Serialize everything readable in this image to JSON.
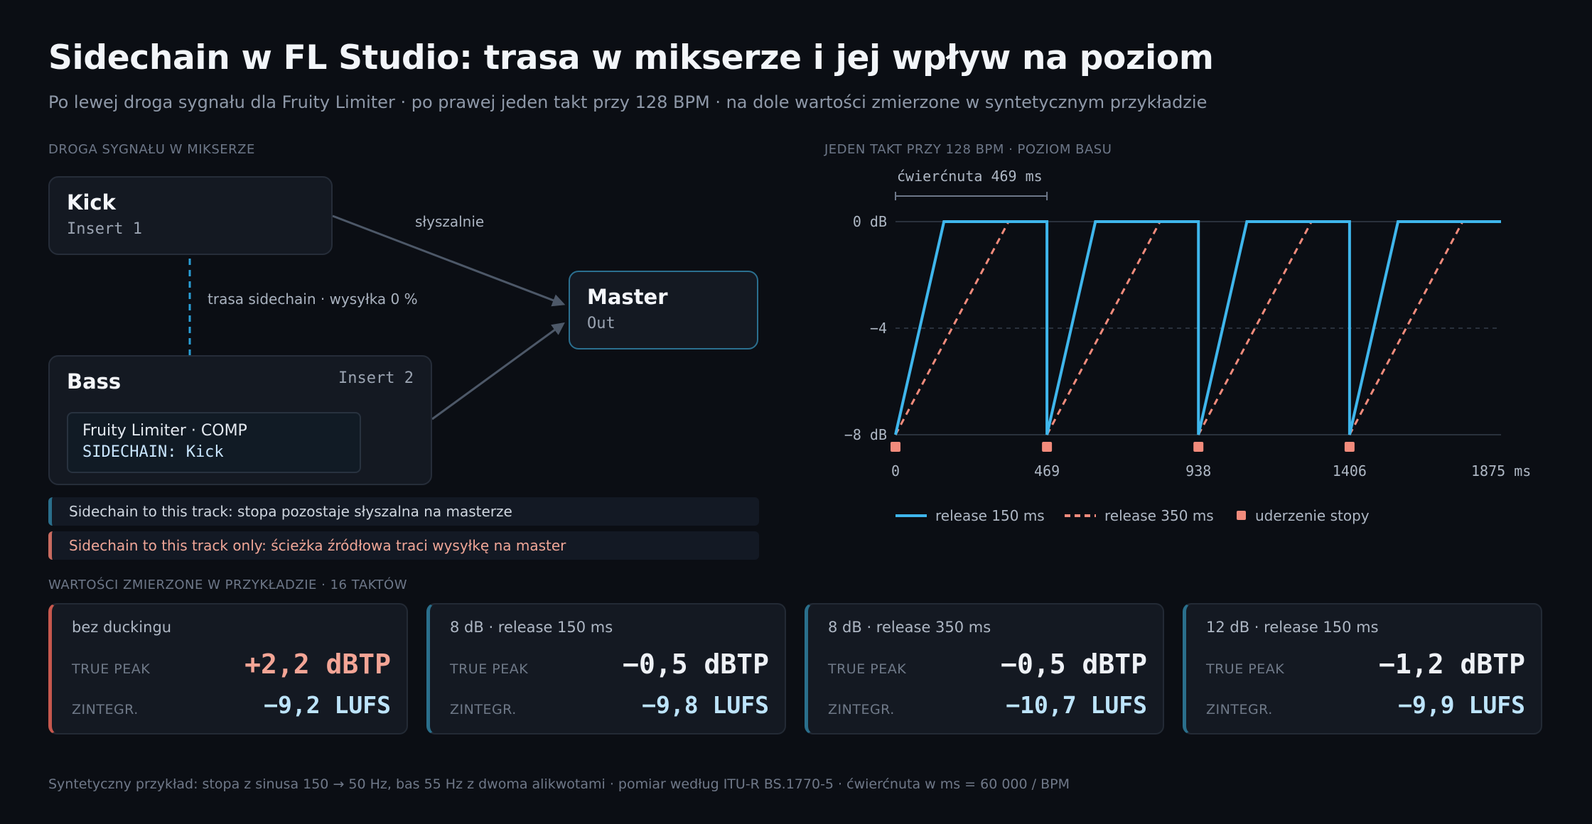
{
  "title": "Sidechain w FL Studio: trasa w mikserze i jej wpływ na poziom",
  "subtitle": "Po lewej droga sygnału dla Fruity Limiter · po prawej jeden takt przy 128 BPM · na dole wartości zmierzone w syntetycznym przykładzie",
  "routing": {
    "section_label": "DROGA SYGNAŁU W MIKSERZE",
    "kick": {
      "title": "Kick",
      "sub": "Insert 1"
    },
    "bass": {
      "title": "Bass",
      "insert": "Insert 2",
      "plugin": "Fruity Limiter · COMP",
      "sidechain": "SIDECHAIN: Kick"
    },
    "master": {
      "title": "Master",
      "sub": "Out"
    },
    "edge_audible": "słyszalnie",
    "edge_sidechain": "trasa sidechain · wysyłka 0 %",
    "note_to_track": "Sidechain to this track: stopa pozostaje słyszalna na masterze",
    "note_track_only": "Sidechain to this track only: ścieżka źródłowa traci wysyłkę na master",
    "colors": {
      "sidechain_edge": "#2a9fd6",
      "audio_edge": "#4d5868",
      "master_border": "#2b6f8f"
    }
  },
  "bar_chart": {
    "section_label": "JEDEN TAKT PRZY 128 BPM · POZIOM BASU",
    "quarter_label": "ćwierćnuta 469 ms",
    "chart_data": {
      "type": "line",
      "x_unit": "ms",
      "xlim": [
        0,
        1875
      ],
      "ylim": [
        -8,
        0
      ],
      "x_ticks": [
        0,
        469,
        938,
        1406,
        1875
      ],
      "x_tick_labels": [
        "0",
        "469",
        "938",
        "1406",
        "1875 ms"
      ],
      "y_ticks": [
        0,
        -4,
        -8
      ],
      "y_tick_labels": [
        "0 dB",
        "−4",
        "−8 dB"
      ],
      "grid": "dashed at −4",
      "kick_hits_ms": [
        0,
        469,
        938,
        1406
      ],
      "duck_depth_db": -8,
      "series": [
        {
          "name": "release 150 ms",
          "release_ms": 150,
          "style": "solid",
          "color": "#3fb6ec"
        },
        {
          "name": "release 350 ms",
          "release_ms": 350,
          "style": "dashed",
          "color": "#f28b7c"
        }
      ],
      "legend": [
        {
          "label": "release 150 ms",
          "kind": "solid-line",
          "color": "#3fb6ec"
        },
        {
          "label": "release 350 ms",
          "kind": "dashed-line",
          "color": "#f28b7c"
        },
        {
          "label": "uderzenie stopy",
          "kind": "square",
          "color": "#f28b7c"
        }
      ],
      "legend_position": "bottom-left"
    }
  },
  "measurements": {
    "section_label": "WARTOŚCI ZMIERZONE W PRZYKŁADZIE · 16 TAKTÓW",
    "peak_label": "TRUE PEAK",
    "lufs_label": "ZINTEGR.",
    "cards": [
      {
        "head": "bez duckingu",
        "peak": "+2,2 dBTP",
        "lufs": "−9,2 LUFS",
        "accent": "#c7584e",
        "peak_color": "#f4a596"
      },
      {
        "head": "8 dB · release 150 ms",
        "peak": "−0,5 dBTP",
        "lufs": "−9,8 LUFS",
        "accent": "#2a6f8c",
        "peak_color": "#eef1f6"
      },
      {
        "head": "8 dB · release 350 ms",
        "peak": "−0,5 dBTP",
        "lufs": "−10,7 LUFS",
        "accent": "#2a6f8c",
        "peak_color": "#eef1f6"
      },
      {
        "head": "12 dB · release 150 ms",
        "peak": "−1,2 dBTP",
        "lufs": "−9,9 LUFS",
        "accent": "#2a6f8c",
        "peak_color": "#eef1f6"
      }
    ]
  },
  "footer": "Syntetyczny przykład: stopa z sinusa 150 → 50 Hz, bas 55 Hz z dwoma alikwotami · pomiar według ITU-R BS.1770-5 · ćwierćnuta w ms = 60 000 / BPM"
}
